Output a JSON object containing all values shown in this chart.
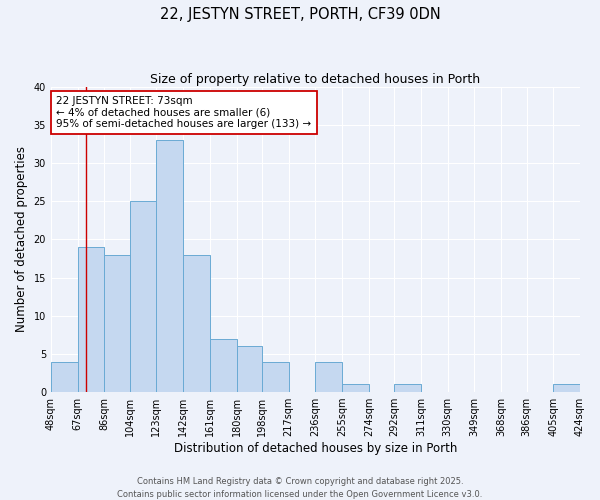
{
  "title": "22, JESTYN STREET, PORTH, CF39 0DN",
  "subtitle": "Size of property relative to detached houses in Porth",
  "xlabel": "Distribution of detached houses by size in Porth",
  "ylabel": "Number of detached properties",
  "bar_edges": [
    48,
    67,
    86,
    104,
    123,
    142,
    161,
    180,
    198,
    217,
    236,
    255,
    274,
    292,
    311,
    330,
    349,
    368,
    386,
    405,
    424
  ],
  "bar_heights": [
    4,
    19,
    18,
    25,
    33,
    18,
    7,
    6,
    4,
    0,
    4,
    1,
    0,
    1,
    0,
    0,
    0,
    0,
    0,
    1
  ],
  "bar_color": "#c5d8f0",
  "bar_edge_color": "#6aaad4",
  "ylim": [
    0,
    40
  ],
  "yticks": [
    0,
    5,
    10,
    15,
    20,
    25,
    30,
    35,
    40
  ],
  "property_line_x": 73,
  "property_line_color": "#cc0000",
  "annotation_line1": "22 JESTYN STREET: 73sqm",
  "annotation_line2": "← 4% of detached houses are smaller (6)",
  "annotation_line3": "95% of semi-detached houses are larger (133) →",
  "annotation_box_color": "#cc0000",
  "footer_line1": "Contains HM Land Registry data © Crown copyright and database right 2025.",
  "footer_line2": "Contains public sector information licensed under the Open Government Licence v3.0.",
  "bg_color": "#eef2fa",
  "tick_labels": [
    "48sqm",
    "67sqm",
    "86sqm",
    "104sqm",
    "123sqm",
    "142sqm",
    "161sqm",
    "180sqm",
    "198sqm",
    "217sqm",
    "236sqm",
    "255sqm",
    "274sqm",
    "292sqm",
    "311sqm",
    "330sqm",
    "349sqm",
    "368sqm",
    "386sqm",
    "405sqm",
    "424sqm"
  ],
  "grid_color": "#ffffff",
  "title_fontsize": 10.5,
  "subtitle_fontsize": 9,
  "axis_label_fontsize": 8.5,
  "tick_fontsize": 7,
  "annotation_fontsize": 7.5,
  "footer_fontsize": 6
}
